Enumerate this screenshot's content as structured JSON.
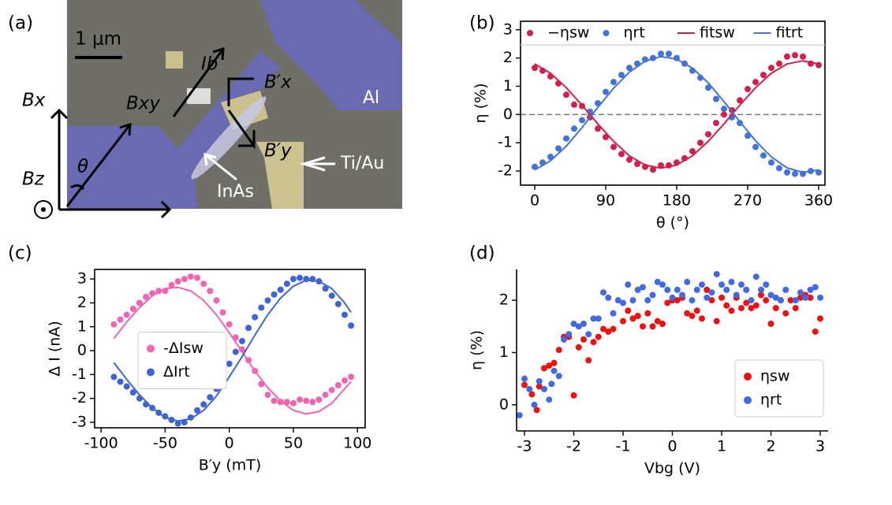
{
  "panel_labels": [
    "(a)",
    "(b)",
    "(c)",
    "(d)"
  ],
  "micrograph": {
    "scale_bar": "1 μm",
    "current": "Ib",
    "field_xy": "Bxy",
    "field_x_prime": "B′x",
    "field_y_prime": "B′y",
    "field_x": "Bx",
    "field_z": "Bz",
    "angle": "θ",
    "aluminum": "Al",
    "contact": "Ti/Au",
    "nanowire": "InAs"
  },
  "chart_data": [
    {
      "type": "scatter",
      "xlabel": "θ (°)",
      "ylabel": "η (%)",
      "xlim": [
        -18,
        368
      ],
      "ylim": [
        -2.5,
        3.3
      ],
      "xticks": [
        0,
        90,
        180,
        270,
        360
      ],
      "yticks": [
        -2,
        -1,
        0,
        1,
        2,
        3
      ],
      "hline": 0,
      "legend": "top",
      "frame": true,
      "series": [
        {
          "name": "−ηsw",
          "color": "#d21f4c",
          "kind": "markers",
          "x": [
            0,
            10,
            20,
            30,
            40,
            50,
            60,
            70,
            80,
            90,
            100,
            110,
            120,
            130,
            140,
            150,
            160,
            170,
            180,
            190,
            200,
            210,
            220,
            230,
            240,
            250,
            260,
            270,
            280,
            290,
            300,
            310,
            320,
            330,
            340,
            350,
            360
          ],
          "values": [
            1.65,
            1.55,
            1.35,
            1.1,
            0.7,
            0.35,
            0.3,
            -0.1,
            -0.5,
            -0.8,
            -1.15,
            -1.4,
            -1.6,
            -1.75,
            -1.85,
            -1.95,
            -1.8,
            -1.8,
            -1.7,
            -1.55,
            -1.3,
            -1.0,
            -0.7,
            -0.3,
            0.0,
            0.15,
            0.5,
            0.9,
            1.15,
            1.4,
            1.65,
            1.8,
            2.05,
            2.1,
            2.05,
            1.8,
            1.75
          ]
        },
        {
          "name": "ηrt",
          "color": "#4372d8",
          "kind": "markers",
          "x": [
            0,
            10,
            20,
            30,
            40,
            50,
            60,
            70,
            80,
            90,
            100,
            110,
            120,
            130,
            140,
            150,
            160,
            170,
            180,
            190,
            200,
            210,
            220,
            230,
            240,
            250,
            260,
            270,
            280,
            290,
            300,
            310,
            320,
            330,
            340,
            350,
            360
          ],
          "values": [
            -1.85,
            -1.7,
            -1.5,
            -1.2,
            -0.85,
            -0.5,
            -0.2,
            0.1,
            0.4,
            0.8,
            1.15,
            1.4,
            1.65,
            1.8,
            1.95,
            2.0,
            2.15,
            2.15,
            2.0,
            1.8,
            1.55,
            1.3,
            0.95,
            0.55,
            0.2,
            -0.1,
            -0.3,
            -0.75,
            -1.15,
            -1.45,
            -1.7,
            -1.9,
            -2.05,
            -2.1,
            -2.1,
            -2.0,
            -2.05
          ]
        },
        {
          "name": "fitsw",
          "color": "#d21f4c",
          "kind": "line",
          "x": [
            0,
            20,
            40,
            60,
            80,
            100,
            120,
            140,
            160,
            180,
            200,
            220,
            240,
            260,
            280,
            300,
            320,
            340,
            360
          ],
          "values": [
            1.79,
            1.46,
            0.95,
            0.33,
            -0.33,
            -0.95,
            -1.46,
            -1.79,
            -1.9,
            -1.79,
            -1.46,
            -0.95,
            -0.33,
            0.33,
            0.95,
            1.46,
            1.79,
            1.9,
            1.79
          ]
        },
        {
          "name": "fitrt",
          "color": "#4372d8",
          "kind": "line",
          "x": [
            0,
            20,
            40,
            60,
            80,
            100,
            120,
            140,
            160,
            180,
            200,
            220,
            240,
            260,
            280,
            300,
            320,
            340,
            360
          ],
          "values": [
            -1.96,
            -1.64,
            -1.12,
            -0.46,
            0.25,
            0.93,
            1.5,
            1.89,
            2.05,
            1.96,
            1.64,
            1.12,
            0.46,
            -0.25,
            -0.93,
            -1.5,
            -1.89,
            -2.05,
            -1.96
          ]
        }
      ]
    },
    {
      "type": "scatter",
      "xlabel": "B′y (mT)",
      "ylabel": "Δ I (nA)",
      "xlim": [
        -105,
        106
      ],
      "ylim": [
        -3.23,
        3.4
      ],
      "xticks": [
        -100,
        -50,
        0,
        50,
        100
      ],
      "yticks": [
        -3,
        -2,
        -1,
        0,
        1,
        2,
        3
      ],
      "legend": "center left",
      "frame": true,
      "series": [
        {
          "name": "-ΔIsw",
          "color": "#f263b4",
          "kind": "markers",
          "x": [
            -90,
            -85,
            -80,
            -75,
            -70,
            -65,
            -60,
            -55,
            -50,
            -45,
            -40,
            -35,
            -30,
            -25,
            -20,
            -15,
            -10,
            -5,
            0,
            5,
            10,
            15,
            20,
            25,
            30,
            35,
            40,
            45,
            50,
            55,
            60,
            65,
            70,
            75,
            80,
            85,
            90,
            95
          ],
          "values": [
            1.1,
            1.3,
            1.5,
            1.75,
            2.0,
            2.25,
            2.4,
            2.5,
            2.5,
            2.75,
            2.9,
            3.0,
            3.1,
            3.05,
            2.8,
            2.5,
            2.1,
            1.6,
            1.1,
            0.55,
            0.05,
            -0.4,
            -0.85,
            -1.4,
            -1.85,
            -2.1,
            -2.15,
            -2.15,
            -2.2,
            -2.05,
            -2.1,
            -2.15,
            -2.05,
            -1.85,
            -1.65,
            -1.45,
            -1.25,
            -1.1
          ]
        },
        {
          "name": "ΔIrt",
          "color": "#3f63d6",
          "kind": "markers",
          "x": [
            -90,
            -85,
            -80,
            -75,
            -70,
            -65,
            -60,
            -55,
            -50,
            -45,
            -40,
            -35,
            -30,
            -25,
            -20,
            -15,
            -10,
            -5,
            0,
            5,
            10,
            15,
            20,
            25,
            30,
            35,
            40,
            45,
            50,
            55,
            60,
            65,
            70,
            75,
            80,
            85,
            90,
            95
          ],
          "values": [
            -1.1,
            -1.3,
            -1.5,
            -1.75,
            -2.0,
            -2.25,
            -2.4,
            -2.6,
            -2.75,
            -2.9,
            -3.05,
            -3.0,
            -2.8,
            -2.5,
            -2.25,
            -1.95,
            -1.6,
            -1.1,
            -0.55,
            -0.05,
            0.4,
            0.95,
            1.4,
            1.8,
            2.1,
            2.35,
            2.55,
            2.8,
            3.0,
            3.05,
            3.0,
            3.0,
            2.9,
            2.6,
            2.3,
            1.95,
            1.5,
            1.05
          ]
        },
        {
          "color": "#f263b4",
          "kind": "line",
          "x": [
            -90,
            -80,
            -70,
            -60,
            -50,
            -40,
            -30,
            -20,
            -10,
            0,
            10,
            20,
            30,
            40,
            50,
            60,
            70,
            80,
            90,
            95
          ],
          "values": [
            0.5,
            1.2,
            1.8,
            2.3,
            2.6,
            2.65,
            2.5,
            2.1,
            1.5,
            0.75,
            -0.05,
            -0.85,
            -1.55,
            -2.1,
            -2.5,
            -2.65,
            -2.55,
            -2.2,
            -1.6,
            -1.3
          ]
        },
        {
          "color": "#3f63d6",
          "kind": "line",
          "x": [
            -90,
            -80,
            -70,
            -60,
            -50,
            -40,
            -30,
            -20,
            -10,
            0,
            10,
            20,
            30,
            40,
            50,
            60,
            70,
            80,
            90,
            95
          ],
          "values": [
            -0.5,
            -1.2,
            -1.85,
            -2.4,
            -2.8,
            -2.95,
            -2.85,
            -2.5,
            -1.9,
            -1.1,
            -0.25,
            0.65,
            1.5,
            2.2,
            2.7,
            2.95,
            2.9,
            2.6,
            2.0,
            1.6
          ]
        }
      ]
    },
    {
      "type": "scatter",
      "xlabel": "Vbg (V)",
      "ylabel": "η (%)",
      "xlim": [
        -3.16,
        3.16
      ],
      "ylim": [
        -0.5,
        2.59
      ],
      "xticks": [
        -3,
        -2,
        -1,
        0,
        1,
        2,
        3
      ],
      "yticks": [
        0,
        1,
        2
      ],
      "legend": "lower right",
      "frame": false,
      "series": [
        {
          "name": "ηsw",
          "color": "#ee1111",
          "kind": "markers",
          "x": [
            -3.0,
            -2.85,
            -2.75,
            -2.7,
            -2.6,
            -2.5,
            -2.4,
            -2.3,
            -2.2,
            -2.1,
            -2.0,
            -1.9,
            -1.8,
            -1.7,
            -1.6,
            -1.5,
            -1.4,
            -1.3,
            -1.2,
            -1.0,
            -0.9,
            -0.8,
            -0.7,
            -0.6,
            -0.5,
            -0.4,
            -0.3,
            -0.2,
            -0.1,
            0.0,
            0.1,
            0.2,
            0.3,
            0.4,
            0.5,
            0.6,
            0.7,
            0.8,
            0.9,
            1.0,
            1.1,
            1.2,
            1.3,
            1.4,
            1.5,
            1.6,
            1.7,
            1.8,
            1.9,
            2.0,
            2.1,
            2.2,
            2.3,
            2.4,
            2.5,
            2.6,
            2.7,
            2.8,
            2.9,
            3.0
          ],
          "values": [
            0.38,
            0.2,
            -0.1,
            0.35,
            0.7,
            0.75,
            0.8,
            1.05,
            1.3,
            1.3,
            0.18,
            1.1,
            1.25,
            0.85,
            1.2,
            1.3,
            1.45,
            1.4,
            1.45,
            1.6,
            1.8,
            1.65,
            1.7,
            1.5,
            1.75,
            1.5,
            1.6,
            1.55,
            1.95,
            2.0,
            2.0,
            2.05,
            1.75,
            1.7,
            1.8,
            1.65,
            2.2,
            2.0,
            1.6,
            2.05,
            1.9,
            1.8,
            2.05,
            1.85,
            1.95,
            1.85,
            1.9,
            2.1,
            2.0,
            1.55,
            1.85,
            2.0,
            1.75,
            2.0,
            1.85,
            2.05,
            2.1,
            2.05,
            1.4,
            1.65
          ]
        },
        {
          "name": "ηrt",
          "color": "#4169e1",
          "kind": "markers",
          "x": [
            -3.1,
            -3.0,
            -2.9,
            -2.8,
            -2.7,
            -2.6,
            -2.5,
            -2.45,
            -2.4,
            -2.3,
            -2.2,
            -2.1,
            -2.0,
            -1.9,
            -1.8,
            -1.7,
            -1.6,
            -1.5,
            -1.4,
            -1.3,
            -1.2,
            -1.1,
            -1.0,
            -0.9,
            -0.8,
            -0.7,
            -0.6,
            -0.5,
            -0.4,
            -0.3,
            -0.2,
            -0.1,
            0.0,
            0.1,
            0.2,
            0.3,
            0.4,
            0.5,
            0.6,
            0.7,
            0.8,
            0.9,
            1.0,
            1.1,
            1.2,
            1.3,
            1.4,
            1.5,
            1.6,
            1.7,
            1.8,
            1.9,
            2.0,
            2.1,
            2.2,
            2.3,
            2.5,
            2.6,
            2.7,
            2.8,
            2.9,
            3.0
          ],
          "values": [
            -0.2,
            0.5,
            0.3,
            0.0,
            0.45,
            0.3,
            0.1,
            0.4,
            0.65,
            0.55,
            1.25,
            1.35,
            1.55,
            1.5,
            1.55,
            1.35,
            1.65,
            1.65,
            2.15,
            2.05,
            1.75,
            2.0,
            1.95,
            2.3,
            2.0,
            2.2,
            2.25,
            2.0,
            2.1,
            2.35,
            2.3,
            2.2,
            2.05,
            2.2,
            2.1,
            2.35,
            2.0,
            2.2,
            2.3,
            2.05,
            2.15,
            2.5,
            2.3,
            2.2,
            2.35,
            2.1,
            2.3,
            2.2,
            2.0,
            2.45,
            2.2,
            2.3,
            2.1,
            2.05,
            2.0,
            2.2,
            2.0,
            2.15,
            2.05,
            2.2,
            2.25,
            2.05
          ]
        }
      ]
    }
  ]
}
